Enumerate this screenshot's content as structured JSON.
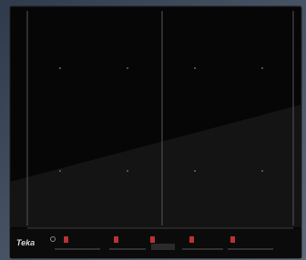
{
  "brand": "Teka"
}
